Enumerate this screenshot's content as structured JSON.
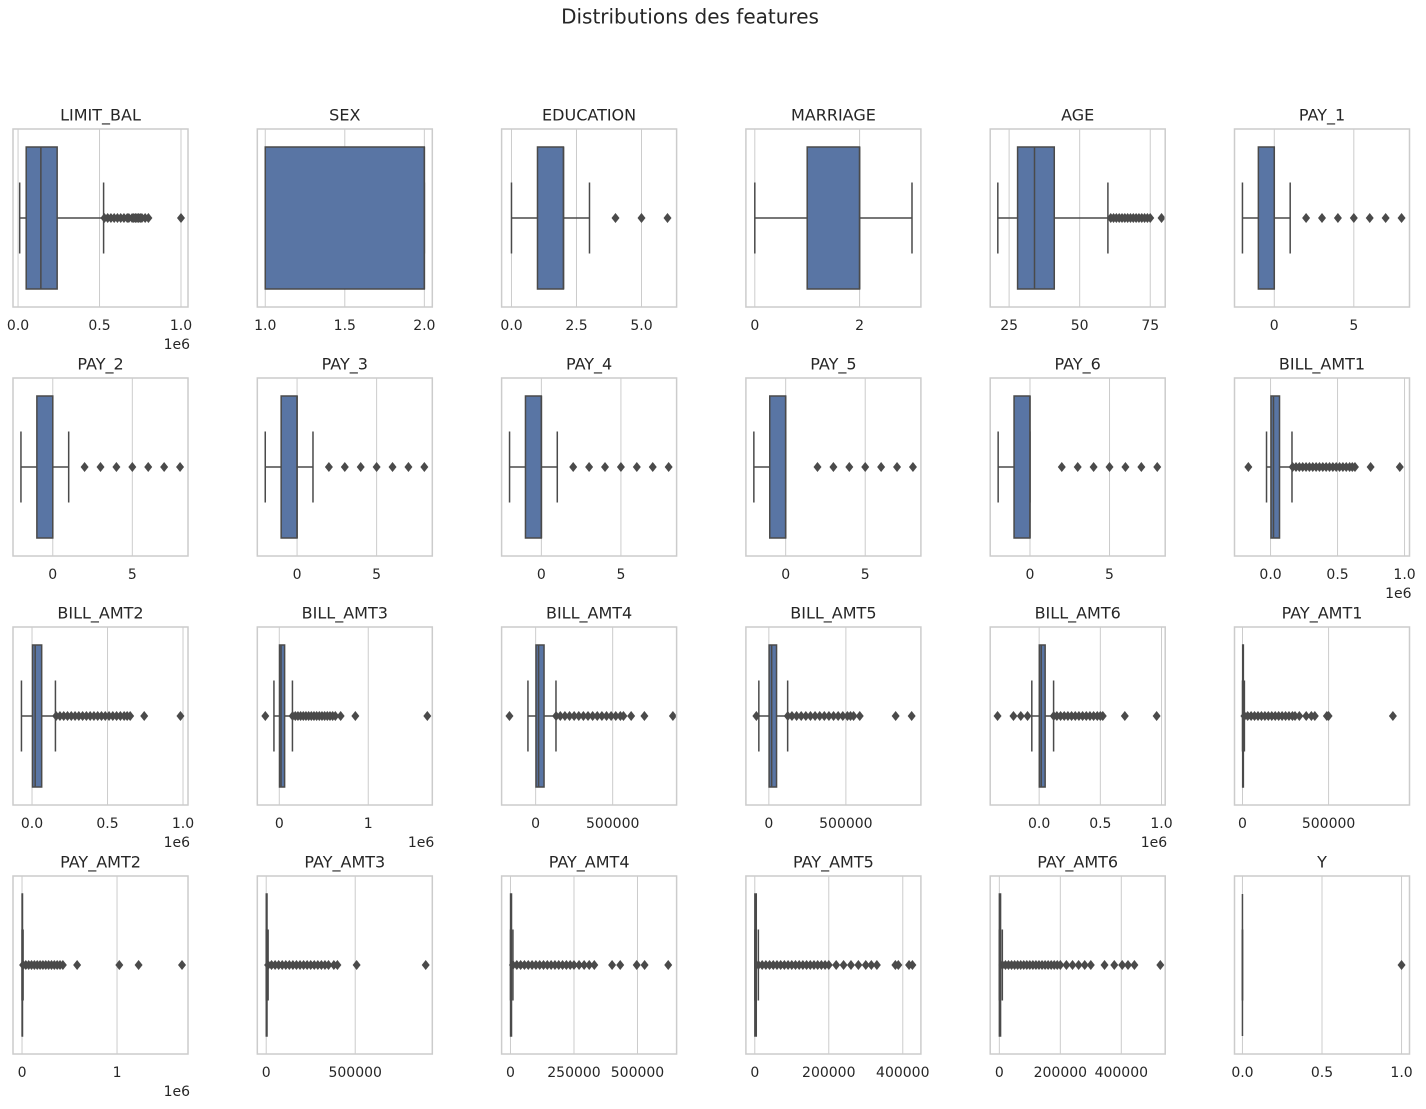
{
  "title": "Distributions des features",
  "chart_data": [
    {
      "type": "box",
      "title": "LIMIT_BAL",
      "xlim": [
        -31000,
        1043000
      ],
      "xticks": [
        {
          "value": 0,
          "label": "0.0"
        },
        {
          "value": 500000,
          "label": "0.5"
        },
        {
          "value": 1000000,
          "label": "1.0"
        }
      ],
      "offset_label": "1e6",
      "whislo": 10000,
      "q1": 50000,
      "median": 140000,
      "q3": 240000,
      "whishi": 525000,
      "fliers": [
        530000,
        550000,
        570000,
        590000,
        610000,
        630000,
        650000,
        670000,
        680000,
        700000,
        710000,
        720000,
        730000,
        740000,
        750000,
        760000,
        780000,
        800000,
        1000000
      ]
    },
    {
      "type": "box",
      "title": "SEX",
      "xlim": [
        0.95,
        2.05
      ],
      "xticks": [
        {
          "value": 1,
          "label": "1.0"
        },
        1.5,
        {
          "value": 2,
          "label": "2.0"
        }
      ],
      "whislo": 1,
      "q1": 1,
      "median": 2,
      "q3": 2,
      "whishi": 2,
      "fliers": []
    },
    {
      "type": "box",
      "title": "EDUCATION",
      "xlim": [
        -0.38,
        6.35
      ],
      "xticks": [
        {
          "value": 0,
          "label": "0.0"
        },
        2.5,
        {
          "value": 5,
          "label": "5.0"
        }
      ],
      "whislo": 0,
      "q1": 1,
      "median": 2,
      "q3": 2,
      "whishi": 3,
      "fliers": [
        4,
        5,
        6
      ]
    },
    {
      "type": "box",
      "title": "MARRIAGE",
      "xlim": [
        -0.17,
        3.17
      ],
      "xticks": [
        0,
        2
      ],
      "whislo": 0,
      "q1": 1,
      "median": 2,
      "q3": 2,
      "whishi": 3,
      "fliers": []
    },
    {
      "type": "box",
      "title": "AGE",
      "xlim": [
        18.3,
        80.3
      ],
      "xticks": [
        25,
        50,
        75
      ],
      "whislo": 21,
      "q1": 28,
      "median": 34,
      "q3": 41,
      "whishi": 60,
      "fliers": [
        61,
        62,
        63,
        64,
        65,
        66,
        67,
        68,
        69,
        70,
        71,
        72,
        73,
        74,
        75,
        79
      ]
    },
    {
      "type": "box",
      "title": "PAY_1",
      "xlim": [
        -2.5,
        8.5
      ],
      "xticks": [
        0,
        5
      ],
      "whislo": -2,
      "q1": -1,
      "median": 0,
      "q3": 0,
      "whishi": 1,
      "fliers": [
        2,
        3,
        4,
        5,
        6,
        7,
        8
      ]
    },
    {
      "type": "box",
      "title": "PAY_2",
      "xlim": [
        -2.5,
        8.5
      ],
      "xticks": [
        0,
        5
      ],
      "whislo": -2,
      "q1": -1,
      "median": 0,
      "q3": 0,
      "whishi": 1,
      "fliers": [
        2,
        3,
        4,
        5,
        6,
        7,
        8
      ]
    },
    {
      "type": "box",
      "title": "PAY_3",
      "xlim": [
        -2.5,
        8.5
      ],
      "xticks": [
        0,
        5
      ],
      "whislo": -2,
      "q1": -1,
      "median": 0,
      "q3": 0,
      "whishi": 1,
      "fliers": [
        2,
        3,
        4,
        5,
        6,
        7,
        8
      ]
    },
    {
      "type": "box",
      "title": "PAY_4",
      "xlim": [
        -2.5,
        8.5
      ],
      "xticks": [
        0,
        5
      ],
      "whislo": -2,
      "q1": -1,
      "median": 0,
      "q3": 0,
      "whishi": 1,
      "fliers": [
        2,
        3,
        4,
        5,
        6,
        7,
        8
      ]
    },
    {
      "type": "box",
      "title": "PAY_5",
      "xlim": [
        -2.5,
        8.5
      ],
      "xticks": [
        0,
        5
      ],
      "whislo": -2,
      "q1": -1,
      "median": 0,
      "q3": 0,
      "whishi": 0,
      "fliers": [
        2,
        3,
        4,
        5,
        6,
        7,
        8
      ]
    },
    {
      "type": "box",
      "title": "PAY_6",
      "xlim": [
        -2.5,
        8.5
      ],
      "xticks": [
        0,
        5
      ],
      "whislo": -2,
      "q1": -1,
      "median": 0,
      "q3": 0,
      "whishi": 0,
      "fliers": [
        2,
        3,
        4,
        5,
        6,
        7,
        8
      ]
    },
    {
      "type": "box",
      "title": "BILL_AMT1",
      "xlim": [
        -269000,
        1037000
      ],
      "xticks": [
        {
          "value": 0,
          "label": "0.0"
        },
        {
          "value": 500000,
          "label": "0.5"
        },
        {
          "value": 1000000,
          "label": "1.0"
        }
      ],
      "offset_label": "1e6",
      "whislo": -30000,
      "q1": 3500,
      "median": 22000,
      "q3": 67000,
      "whishi": 160000,
      "fliers": [
        -165580,
        165000,
        190000,
        215000,
        240000,
        265000,
        290000,
        315000,
        340000,
        365000,
        390000,
        415000,
        440000,
        465000,
        490000,
        515000,
        540000,
        565000,
        590000,
        610000,
        630000,
        746814,
        964511
      ]
    },
    {
      "type": "box",
      "title": "BILL_AMT2",
      "xlim": [
        -126000,
        1033000
      ],
      "xticks": [
        {
          "value": 0,
          "label": "0.0"
        },
        {
          "value": 500000,
          "label": "0.5"
        },
        {
          "value": 1000000,
          "label": "1.0"
        }
      ],
      "offset_label": "1e6",
      "whislo": -70000,
      "q1": 3000,
      "median": 21000,
      "q3": 64000,
      "whishi": 155000,
      "fliers": [
        160000,
        185000,
        210000,
        235000,
        260000,
        285000,
        310000,
        335000,
        360000,
        385000,
        410000,
        435000,
        460000,
        485000,
        510000,
        535000,
        560000,
        585000,
        610000,
        630000,
        650000,
        743000,
        983000
      ]
    },
    {
      "type": "box",
      "title": "BILL_AMT3",
      "xlim": [
        -247000,
        1720000
      ],
      "xticks": [
        0,
        {
          "value": 1000000,
          "label": "1"
        }
      ],
      "offset_label": "1e6",
      "whislo": -60000,
      "q1": 2700,
      "median": 20000,
      "q3": 60000,
      "whishi": 148000,
      "fliers": [
        -157000,
        150000,
        180000,
        210000,
        240000,
        270000,
        300000,
        330000,
        360000,
        390000,
        420000,
        450000,
        480000,
        510000,
        540000,
        570000,
        600000,
        630000,
        690000,
        855000,
        1664000
      ]
    },
    {
      "type": "box",
      "title": "BILL_AMT4",
      "xlim": [
        -221000,
        915000
      ],
      "xticks": [
        0,
        500000
      ],
      "whislo": -50000,
      "q1": 2300,
      "median": 19000,
      "q3": 54500,
      "whishi": 132000,
      "fliers": [
        -170000,
        133000,
        160000,
        190000,
        220000,
        250000,
        280000,
        310000,
        340000,
        370000,
        400000,
        430000,
        460000,
        490000,
        520000,
        550000,
        570000,
        620000,
        706000,
        891000
      ]
    },
    {
      "type": "box",
      "title": "BILL_AMT5",
      "xlim": [
        -149000,
        987000
      ],
      "xticks": [
        0,
        500000
      ],
      "whislo": -65000,
      "q1": 1700,
      "median": 18000,
      "q3": 50000,
      "whishi": 122000,
      "fliers": [
        -81000,
        123000,
        150000,
        180000,
        210000,
        240000,
        270000,
        300000,
        330000,
        360000,
        390000,
        420000,
        450000,
        480000,
        510000,
        530000,
        550000,
        590000,
        823000,
        927000
      ]
    },
    {
      "type": "box",
      "title": "BILL_AMT6",
      "xlim": [
        -400000,
        1030000
      ],
      "xticks": [
        {
          "value": 0,
          "label": "0.0"
        },
        {
          "value": 500000,
          "label": "0.5"
        },
        {
          "value": 1000000,
          "label": "1.0"
        }
      ],
      "offset_label": "1e6",
      "whislo": -60000,
      "q1": 1200,
      "median": 17000,
      "q3": 49000,
      "whishi": 118000,
      "fliers": [
        -340000,
        -210000,
        -150000,
        -95000,
        119000,
        145000,
        175000,
        205000,
        235000,
        265000,
        295000,
        325000,
        355000,
        385000,
        415000,
        445000,
        475000,
        500000,
        520000,
        700000,
        960000
      ]
    },
    {
      "type": "box",
      "title": "PAY_AMT1",
      "xlim": [
        -46500,
        970000
      ],
      "xticks": [
        0,
        500000
      ],
      "whislo": 0,
      "q1": 1000,
      "median": 2100,
      "q3": 5006,
      "whishi": 11015,
      "fliers": [
        11100,
        30000,
        50000,
        70000,
        90000,
        110000,
        130000,
        150000,
        170000,
        190000,
        210000,
        230000,
        250000,
        270000,
        290000,
        305000,
        330000,
        370000,
        400000,
        420000,
        490000,
        500000,
        873552
      ]
    },
    {
      "type": "box",
      "title": "PAY_AMT2",
      "xlim": [
        -95000,
        1747000
      ],
      "xticks": [
        0,
        {
          "value": 1000000,
          "label": "1"
        }
      ],
      "offset_label": "1e6",
      "whislo": 0,
      "q1": 833,
      "median": 2009,
      "q3": 5000,
      "whishi": 11250,
      "fliers": [
        11300,
        40000,
        70000,
        100000,
        130000,
        160000,
        190000,
        220000,
        250000,
        280000,
        310000,
        340000,
        370000,
        400000,
        430000,
        580000,
        1024000,
        1227000,
        1684000
      ]
    },
    {
      "type": "box",
      "title": "PAY_AMT3",
      "xlim": [
        -50000,
        933000
      ],
      "xticks": [
        0,
        500000
      ],
      "whislo": 0,
      "q1": 390,
      "median": 1800,
      "q3": 4505,
      "whishi": 10677,
      "fliers": [
        10700,
        30000,
        50000,
        70000,
        90000,
        110000,
        130000,
        150000,
        170000,
        190000,
        210000,
        230000,
        250000,
        270000,
        290000,
        310000,
        330000,
        350000,
        380000,
        400000,
        508000,
        896000
      ]
    },
    {
      "type": "box",
      "title": "PAY_AMT4",
      "xlim": [
        -35000,
        654000
      ],
      "xticks": [
        0,
        250000,
        500000
      ],
      "whislo": 0,
      "q1": 296,
      "median": 1500,
      "q3": 4013,
      "whishi": 9589,
      "fliers": [
        9600,
        25000,
        40000,
        55000,
        70000,
        85000,
        100000,
        115000,
        130000,
        145000,
        160000,
        175000,
        190000,
        205000,
        220000,
        235000,
        250000,
        270000,
        290000,
        310000,
        330000,
        400000,
        432000,
        497000,
        528000,
        621000
      ]
    },
    {
      "type": "box",
      "title": "PAY_AMT5",
      "xlim": [
        -24000,
        449000
      ],
      "xticks": [
        0,
        200000,
        400000
      ],
      "whislo": 0,
      "q1": 252,
      "median": 1500,
      "q3": 4031,
      "whishi": 9700,
      "fliers": [
        9800,
        20000,
        30000,
        40000,
        50000,
        60000,
        70000,
        80000,
        90000,
        100000,
        110000,
        120000,
        130000,
        140000,
        150000,
        160000,
        170000,
        180000,
        190000,
        200000,
        220000,
        240000,
        260000,
        280000,
        300000,
        315000,
        330000,
        380000,
        388000,
        417000,
        426000
      ]
    },
    {
      "type": "box",
      "title": "PAY_AMT6",
      "xlim": [
        -30000,
        544000
      ],
      "xticks": [
        0,
        200000,
        400000
      ],
      "whislo": 0,
      "q1": 117,
      "median": 1500,
      "q3": 4000,
      "whishi": 9800,
      "fliers": [
        9900,
        20000,
        30000,
        40000,
        50000,
        60000,
        70000,
        80000,
        90000,
        100000,
        110000,
        120000,
        130000,
        140000,
        150000,
        160000,
        170000,
        180000,
        190000,
        200000,
        220000,
        240000,
        260000,
        280000,
        300000,
        345000,
        377000,
        403000,
        422000,
        443000,
        528000
      ]
    },
    {
      "type": "box",
      "title": "Y",
      "xlim": [
        -0.05,
        1.05
      ],
      "xticks": [
        {
          "value": 0,
          "label": "0.0"
        },
        0.5,
        {
          "value": 1,
          "label": "1.0"
        }
      ],
      "whislo": 0,
      "q1": 0,
      "median": 0,
      "q3": 0,
      "whishi": 0,
      "fliers": [
        1
      ]
    }
  ]
}
